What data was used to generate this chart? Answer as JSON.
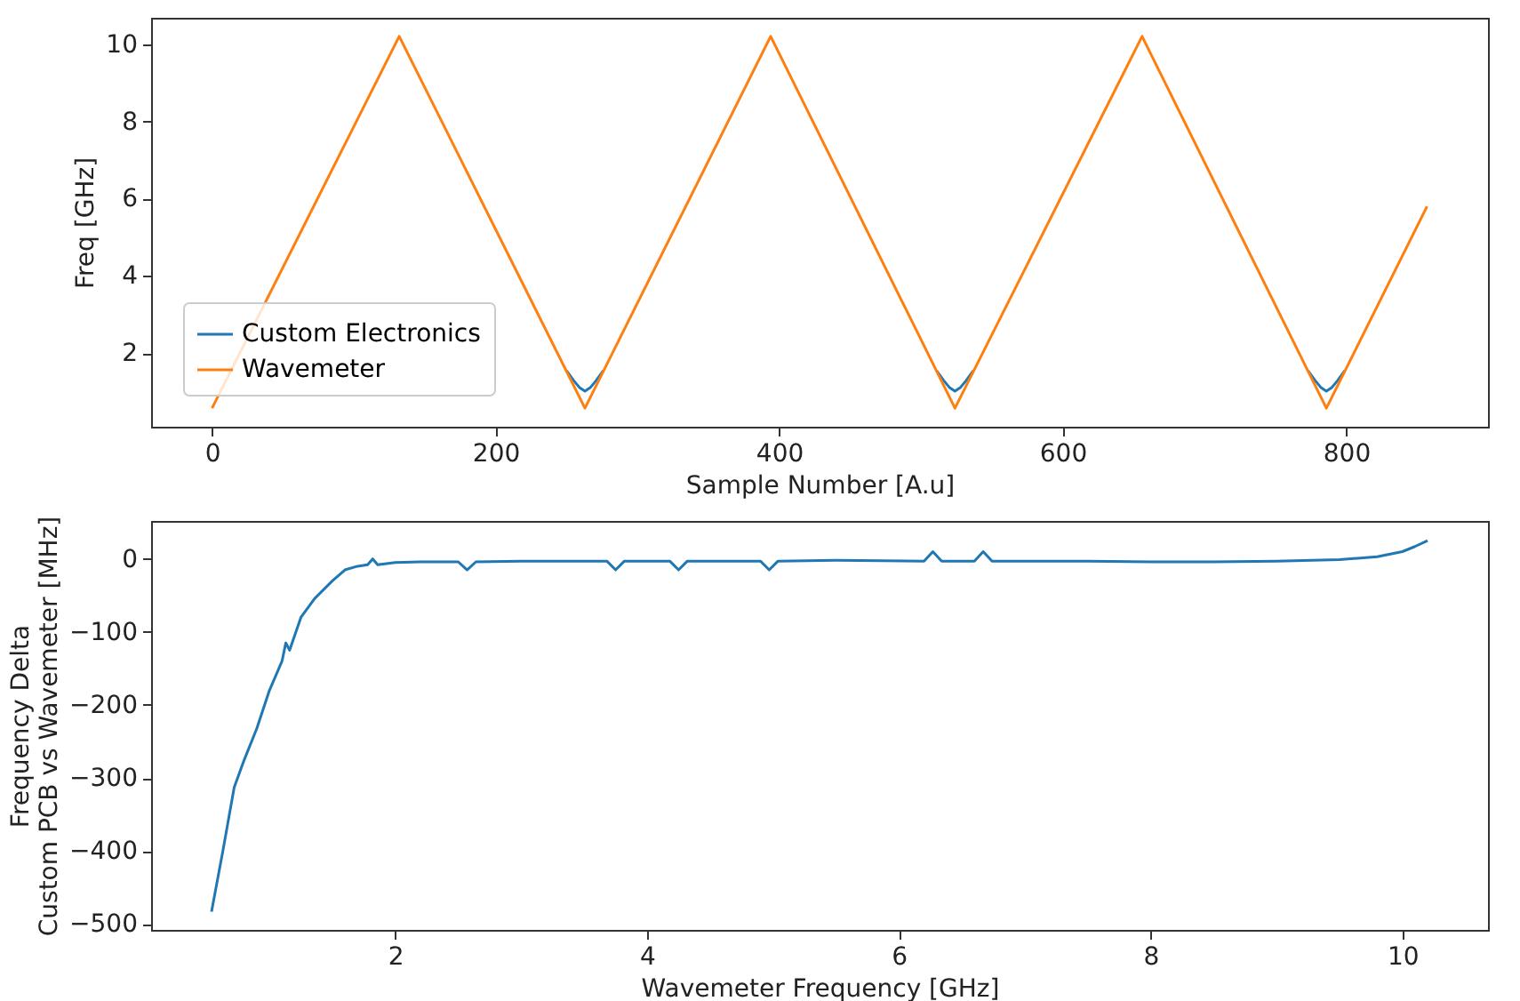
{
  "chart_data": [
    {
      "type": "line",
      "xlabel": "Sample Number [A.u]",
      "ylabel": "Freq [GHz]",
      "xlim": [
        -43,
        900
      ],
      "ylim": [
        0.1,
        10.68
      ],
      "xticks": [
        0,
        200,
        400,
        600,
        800
      ],
      "yticks": [
        2,
        4,
        6,
        8,
        10
      ],
      "grid": false,
      "legend": "bottom left",
      "series": [
        {
          "name": "Custom Electronics",
          "color": "#1f77b4",
          "x": [
            250,
            255,
            259,
            263,
            267,
            271,
            276,
            null,
            511,
            516,
            520,
            524,
            528,
            532,
            537,
            null,
            773,
            778,
            782,
            786,
            790,
            794,
            799
          ],
          "values": [
            1.55,
            1.3,
            1.12,
            1.02,
            1.12,
            1.3,
            1.55,
            null,
            1.55,
            1.3,
            1.12,
            1.02,
            1.12,
            1.3,
            1.55,
            null,
            1.55,
            1.3,
            1.12,
            1.02,
            1.12,
            1.3,
            1.55
          ]
        },
        {
          "name": "Wavemeter",
          "color": "#ff7f0e",
          "x": [
            0,
            132,
            263,
            394,
            524,
            656,
            786,
            857
          ],
          "values": [
            0.58,
            10.2,
            0.58,
            10.2,
            0.58,
            10.2,
            0.58,
            5.8
          ]
        }
      ]
    },
    {
      "type": "line",
      "xlabel": "Wavemeter Frequency [GHz]",
      "ylabel": "Frequency Delta\nCustom PCB vs Wavemeter [MHz]",
      "xlim": [
        0.06,
        10.68
      ],
      "ylim": [
        -508,
        52
      ],
      "xticks": [
        2,
        4,
        6,
        8,
        10
      ],
      "yticks": [
        -500,
        -400,
        -300,
        -200,
        -100,
        0
      ],
      "grid": false,
      "series": [
        {
          "color": "#1f77b4",
          "x": [
            0.54,
            0.63,
            0.72,
            0.8,
            0.9,
            1.0,
            1.1,
            1.13,
            1.16,
            1.25,
            1.36,
            1.5,
            1.6,
            1.7,
            1.78,
            1.82,
            1.86,
            2.0,
            2.2,
            2.5,
            2.57,
            2.64,
            3.0,
            3.5,
            3.68,
            3.75,
            3.82,
            4.18,
            4.25,
            4.32,
            4.9,
            4.97,
            5.04,
            5.5,
            6.2,
            6.27,
            6.34,
            6.6,
            6.67,
            6.74,
            7.5,
            8.0,
            8.5,
            9.0,
            9.5,
            9.8,
            10.0,
            10.1,
            10.2
          ],
          "values": [
            -483,
            -400,
            -313,
            -275,
            -232,
            -180,
            -140,
            -115,
            -125,
            -80,
            -54,
            -30,
            -15,
            -10,
            -8,
            0,
            -8,
            -5,
            -4,
            -4,
            -15,
            -4,
            -3,
            -3,
            -3,
            -15,
            -3,
            -3,
            -15,
            -3,
            -3,
            -15,
            -3,
            -2,
            -3,
            10,
            -3,
            -3,
            10,
            -3,
            -3,
            -4,
            -4,
            -3,
            -1,
            3,
            10,
            17,
            25
          ]
        }
      ]
    }
  ]
}
